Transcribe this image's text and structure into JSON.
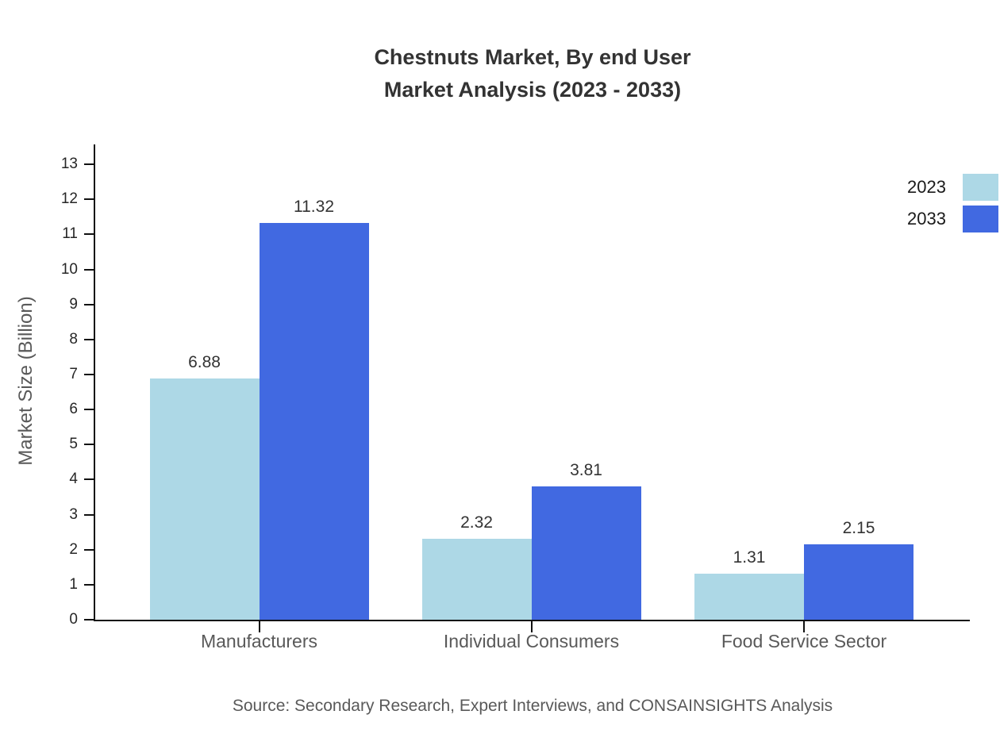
{
  "title": {
    "line1": "Chestnuts Market, By end User",
    "line2": "Market Analysis (2023 - 2033)"
  },
  "source": "Source: Secondary Research, Expert Interviews, and CONSAINSIGHTS Analysis",
  "chart_data": {
    "type": "bar",
    "title": "Chestnuts Market, By end User Market Analysis (2023 - 2033)",
    "categories": [
      "Manufacturers",
      "Individual Consumers",
      "Food Service Sector"
    ],
    "series": [
      {
        "name": "2023",
        "color": "#ADD8E6",
        "values": [
          6.88,
          2.32,
          1.31
        ]
      },
      {
        "name": "2033",
        "color": "#4169E1",
        "values": [
          11.32,
          3.81,
          2.15
        ]
      }
    ],
    "xlabel": "",
    "ylabel": "Market Size (Billion)",
    "ylim": [
      0,
      13
    ],
    "ytick_step": 1,
    "grid": false,
    "legend_position": "top-right",
    "value_labels": true,
    "value_label_decimals": 2
  }
}
